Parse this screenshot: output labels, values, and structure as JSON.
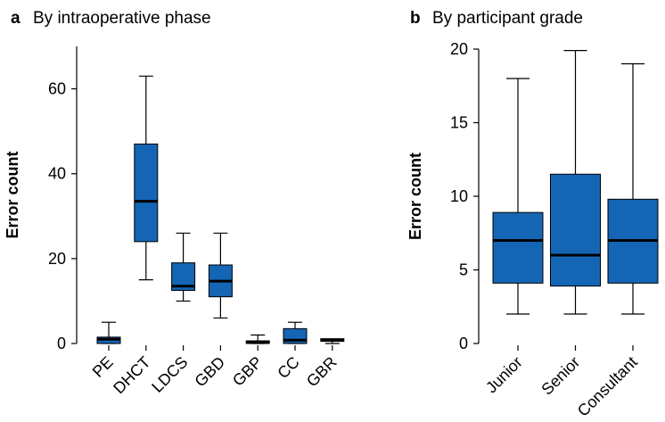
{
  "chart_data": [
    {
      "type": "boxplot",
      "panel_letter": "a",
      "title": "By intraoperative phase",
      "ylabel": "Error count",
      "ylim": [
        0,
        70
      ],
      "yticks": [
        0,
        20,
        40,
        60
      ],
      "categories": [
        "PE",
        "DHCT",
        "LDCS",
        "GBD",
        "GBP",
        "CC",
        "GBR"
      ],
      "boxes": [
        {
          "min": 0,
          "q1": 0,
          "median": 1,
          "q3": 1.5,
          "max": 5
        },
        {
          "min": 15,
          "q1": 24,
          "median": 33.5,
          "q3": 47,
          "max": 63
        },
        {
          "min": 10,
          "q1": 12.5,
          "median": 13.5,
          "q3": 19,
          "max": 26
        },
        {
          "min": 6,
          "q1": 11,
          "median": 14.7,
          "q3": 18.5,
          "max": 26
        },
        {
          "min": 0,
          "q1": 0,
          "median": 0.3,
          "q3": 0.6,
          "max": 2
        },
        {
          "min": 0,
          "q1": 0,
          "median": 0.8,
          "q3": 3.5,
          "max": 5
        },
        {
          "min": 0,
          "q1": 0.5,
          "median": 0.8,
          "q3": 1.0,
          "max": 1.0
        }
      ],
      "box_color": "#1565b5",
      "grid": false
    },
    {
      "type": "boxplot",
      "panel_letter": "b",
      "title": "By participant grade",
      "ylabel": "Error count",
      "ylim": [
        0,
        20
      ],
      "yticks": [
        0,
        5,
        10,
        15,
        20
      ],
      "categories": [
        "Junior",
        "Senior",
        "Consultant"
      ],
      "boxes": [
        {
          "min": 2,
          "q1": 4.1,
          "median": 7,
          "q3": 8.9,
          "max": 18
        },
        {
          "min": 2,
          "q1": 3.9,
          "median": 6,
          "q3": 11.5,
          "max": 19.9
        },
        {
          "min": 2,
          "q1": 4.1,
          "median": 7,
          "q3": 9.8,
          "max": 19
        }
      ],
      "box_color": "#1565b5",
      "grid": false
    }
  ]
}
